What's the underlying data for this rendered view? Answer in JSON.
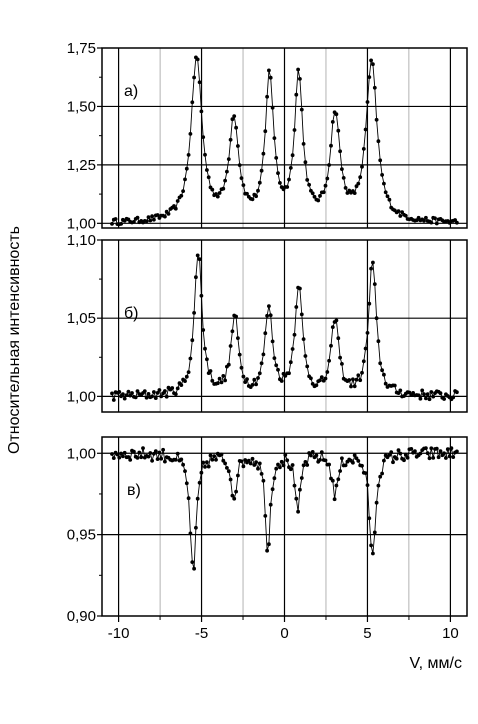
{
  "chart_data": {
    "type": "scatter",
    "xlabel": "V, мм/с",
    "ylabel": "Относительная интенсивность",
    "xlim": [
      -11,
      11
    ],
    "x_ticks": [
      -10,
      -5,
      0,
      5,
      10
    ],
    "x_tick_labels": [
      "-10",
      "-5",
      "0",
      "5",
      "10"
    ],
    "grid": true,
    "panels": [
      {
        "label": "а)",
        "ylim": [
          0.98,
          1.75
        ],
        "y_ticks": [
          1.0,
          1.25,
          1.5,
          1.75
        ],
        "y_tick_labels": [
          "1,00",
          "1,25",
          "1,50",
          "1,75"
        ],
        "baseline": 1.0,
        "peaks": [
          {
            "v": -5.3,
            "amp": 0.7,
            "w": 0.4
          },
          {
            "v": -3.05,
            "amp": 0.43,
            "w": 0.35
          },
          {
            "v": -0.9,
            "amp": 0.62,
            "w": 0.3
          },
          {
            "v": 0.85,
            "amp": 0.62,
            "w": 0.3
          },
          {
            "v": 3.05,
            "amp": 0.45,
            "w": 0.35
          },
          {
            "v": 5.25,
            "amp": 0.68,
            "w": 0.4
          }
        ],
        "noise": 0.012
      },
      {
        "label": "б)",
        "ylim": [
          0.99,
          1.1
        ],
        "y_ticks": [
          1.0,
          1.05,
          1.1
        ],
        "y_tick_labels": [
          "1,00",
          "1,05",
          "1,10"
        ],
        "baseline": 1.0,
        "peaks": [
          {
            "v": -5.2,
            "amp": 0.092,
            "w": 0.28
          },
          {
            "v": -3.0,
            "amp": 0.049,
            "w": 0.28
          },
          {
            "v": -0.95,
            "amp": 0.055,
            "w": 0.28
          },
          {
            "v": 0.85,
            "amp": 0.07,
            "w": 0.28
          },
          {
            "v": 3.05,
            "amp": 0.048,
            "w": 0.28
          },
          {
            "v": 5.3,
            "amp": 0.085,
            "w": 0.28
          }
        ],
        "noise": 0.003
      },
      {
        "label": "в)",
        "ylim": [
          0.9,
          1.01
        ],
        "y_ticks": [
          0.9,
          0.95,
          1.0
        ],
        "y_tick_labels": [
          "0,90",
          "0,95",
          "1,00"
        ],
        "baseline": 1.0,
        "peaks": [
          {
            "v": -5.5,
            "amp": -0.075,
            "w": 0.22
          },
          {
            "v": -3.05,
            "amp": -0.025,
            "w": 0.22
          },
          {
            "v": -1.0,
            "amp": -0.06,
            "w": 0.18
          },
          {
            "v": 0.8,
            "amp": -0.038,
            "w": 0.18
          },
          {
            "v": 3.05,
            "amp": -0.025,
            "w": 0.22
          },
          {
            "v": 5.3,
            "amp": -0.065,
            "w": 0.22
          }
        ],
        "noise": 0.004
      }
    ]
  }
}
